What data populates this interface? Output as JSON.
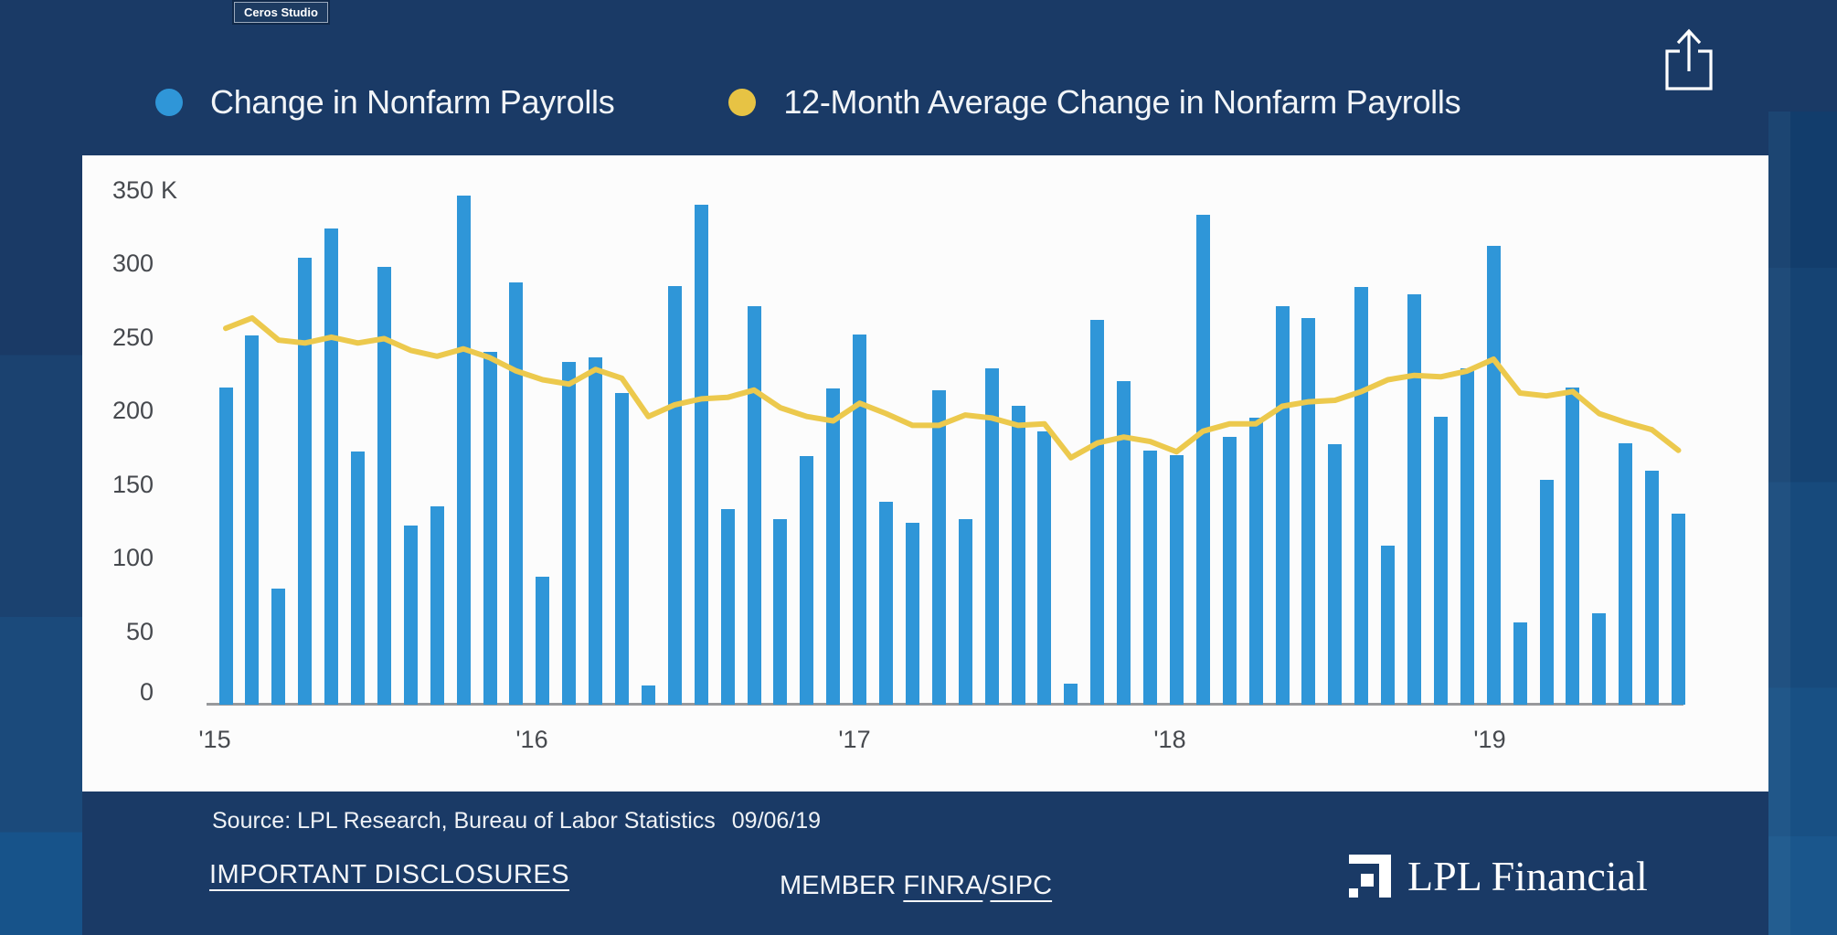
{
  "badge": {
    "label": "Ceros Studio"
  },
  "share": {
    "icon": "share-export-icon"
  },
  "legend": [
    {
      "label": "Change in Nonfarm Payrolls",
      "color": "#2F96D8"
    },
    {
      "label": "12-Month Average Change in Nonfarm Payrolls",
      "color": "#E7C344"
    }
  ],
  "chart_data": {
    "type": "bar",
    "title": "",
    "xlabel": "",
    "ylabel": "",
    "unit": "thousands of jobs (K)",
    "ylim": [
      0,
      362
    ],
    "grid": false,
    "legend_position": "top",
    "y_axis": {
      "labels": [
        "350",
        "300",
        "250",
        "200",
        "150",
        "100",
        "50",
        "0"
      ],
      "values": [
        350,
        300,
        250,
        200,
        150,
        100,
        50,
        0
      ],
      "suffix": "K"
    },
    "x_tick_labels": [
      "'15",
      "'16",
      "'17",
      "'18",
      "'19"
    ],
    "x": [
      "2015-01",
      "2015-02",
      "2015-03",
      "2015-04",
      "2015-05",
      "2015-06",
      "2015-07",
      "2015-08",
      "2015-09",
      "2015-10",
      "2015-11",
      "2015-12",
      "2016-01",
      "2016-02",
      "2016-03",
      "2016-04",
      "2016-05",
      "2016-06",
      "2016-07",
      "2016-08",
      "2016-09",
      "2016-10",
      "2016-11",
      "2016-12",
      "2017-01",
      "2017-02",
      "2017-03",
      "2017-04",
      "2017-05",
      "2017-06",
      "2017-07",
      "2017-08",
      "2017-09",
      "2017-10",
      "2017-11",
      "2017-12",
      "2018-01",
      "2018-02",
      "2018-03",
      "2018-04",
      "2018-05",
      "2018-06",
      "2018-07",
      "2018-08",
      "2018-09",
      "2018-10",
      "2018-11",
      "2018-12",
      "2019-01",
      "2019-02",
      "2019-03",
      "2019-04",
      "2019-05",
      "2019-06",
      "2019-07",
      "2019-08"
    ],
    "series": [
      {
        "name": "Change in Nonfarm Payrolls",
        "type": "bar",
        "color": "#2F96D8",
        "values": [
          216,
          251,
          79,
          304,
          324,
          172,
          298,
          122,
          135,
          346,
          240,
          287,
          87,
          233,
          236,
          212,
          13,
          285,
          340,
          133,
          271,
          126,
          169,
          215,
          252,
          138,
          124,
          214,
          126,
          229,
          203,
          186,
          14,
          262,
          220,
          173,
          170,
          333,
          182,
          195,
          271,
          263,
          177,
          284,
          108,
          279,
          196,
          229,
          312,
          56,
          153,
          216,
          62,
          178,
          159,
          130
        ]
      },
      {
        "name": "12-Month Average Change in Nonfarm Payrolls",
        "type": "line",
        "color": "#ECC94D",
        "values": [
          256,
          263,
          248,
          246,
          250,
          246,
          249,
          241,
          237,
          242,
          236,
          227,
          221,
          218,
          228,
          222,
          196,
          204,
          208,
          209,
          214,
          202,
          196,
          193,
          205,
          198,
          190,
          190,
          197,
          195,
          190,
          191,
          168,
          178,
          182,
          179,
          172,
          186,
          191,
          191,
          203,
          206,
          207,
          213,
          221,
          224,
          223,
          227,
          235,
          212,
          210,
          213,
          198,
          192,
          187,
          173
        ]
      }
    ]
  },
  "footer": {
    "source_label": "Source: LPL Research, Bureau of Labor Statistics",
    "source_date": "09/06/19",
    "disclosures": "IMPORTANT DISCLOSURES",
    "member_prefix": "MEMBER ",
    "finra": "FINRA",
    "slash": "/",
    "sipc": "SIPC",
    "logo_text": "LPL Financial"
  }
}
